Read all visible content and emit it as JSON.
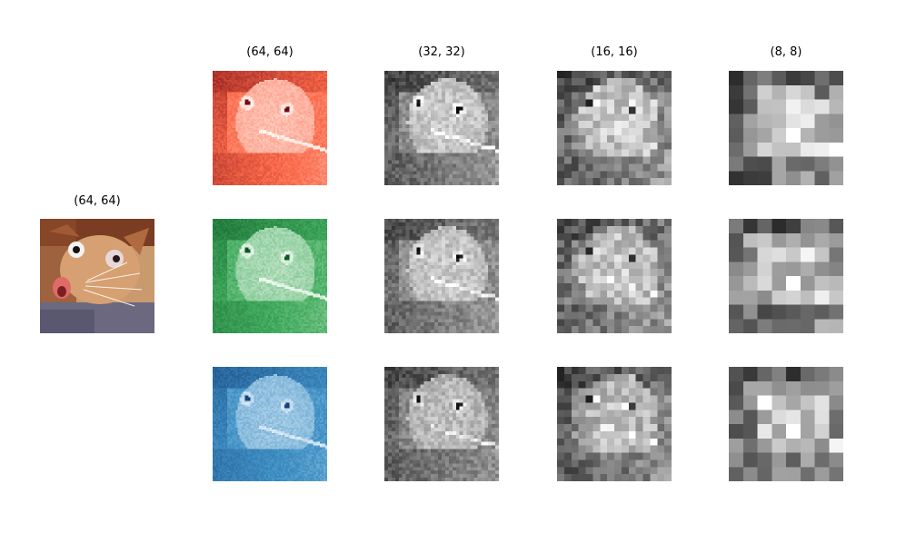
{
  "figure": {
    "original_label": "(64, 64)",
    "column_labels": [
      "(64, 64)",
      "(32, 32)",
      "(16, 16)",
      "(8, 8)"
    ],
    "channels": [
      {
        "name": "red",
        "colormap": "Reds",
        "low": "#fff5f0",
        "mid": "#fb6a4a",
        "high": "#67000d"
      },
      {
        "name": "green",
        "colormap": "Greens",
        "low": "#f7fcf5",
        "mid": "#41ab5d",
        "high": "#00441b"
      },
      {
        "name": "blue",
        "colormap": "Blues",
        "low": "#f7fbff",
        "mid": "#4292c6",
        "high": "#08306b"
      }
    ],
    "gray_colormap": {
      "low": "#000000",
      "high": "#ffffff"
    },
    "resolutions": [
      64,
      32,
      16,
      8
    ]
  }
}
